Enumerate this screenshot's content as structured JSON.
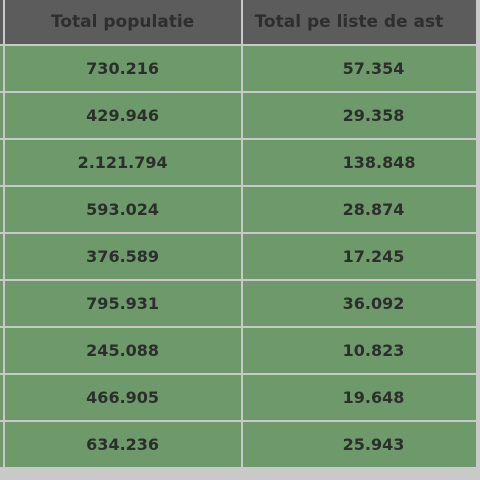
{
  "table": {
    "headers": [
      "Total populatie",
      "Total pe liste de ast"
    ],
    "rows": [
      {
        "population": "730.216",
        "lists": "57.354"
      },
      {
        "population": "429.946",
        "lists": "29.358"
      },
      {
        "population": "2.121.794",
        "lists": "138.848"
      },
      {
        "population": "593.024",
        "lists": "28.874"
      },
      {
        "population": "376.589",
        "lists": "17.245"
      },
      {
        "population": "795.931",
        "lists": "36.092"
      },
      {
        "population": "245.088",
        "lists": "10.823"
      },
      {
        "population": "466.905",
        "lists": "19.648"
      },
      {
        "population": "634.236",
        "lists": "25.943"
      }
    ]
  },
  "colors": {
    "header_bg": "#5c5c5c",
    "cell_bg": "#6e9a6b",
    "gridline": "#c9c9c9"
  }
}
